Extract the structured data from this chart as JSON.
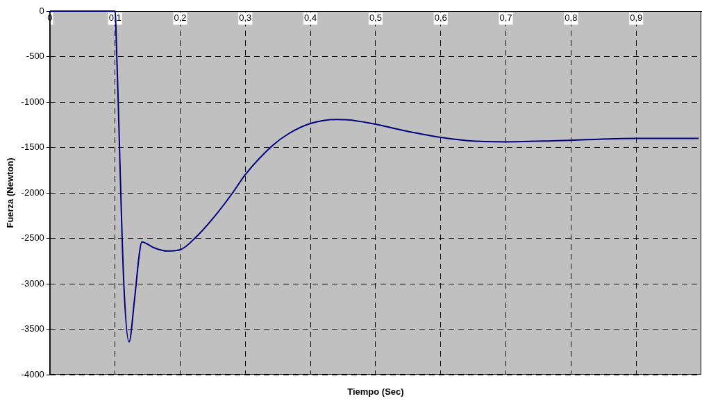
{
  "chart_data": {
    "type": "line",
    "xlabel": "Tiempo (Sec)",
    "ylabel": "Fuerza (Newton)",
    "x": [
      0,
      0.05,
      0.1,
      0.103,
      0.1135,
      0.1215,
      0.13,
      0.1374,
      0.141,
      0.1595,
      0.18,
      0.2,
      0.224,
      0.252,
      0.2805,
      0.3,
      0.3415,
      0.366,
      0.4,
      0.44,
      0.461,
      0.5,
      0.5375,
      0.6,
      0.641,
      0.7,
      0.78,
      0.9,
      0.996
    ],
    "series": [
      {
        "color": "#000080",
        "values": [
          0,
          0,
          0,
          -565,
          -3000,
          -3640,
          -3168,
          -2668,
          -2540,
          -2603,
          -2640,
          -2626,
          -2489,
          -2267,
          -2000,
          -1799,
          -1481,
          -1351,
          -1237,
          -1193,
          -1199,
          -1244,
          -1305,
          -1390,
          -1425,
          -1438,
          -1425,
          -1400,
          -1400
        ]
      }
    ],
    "xlim": [
      0,
      1
    ],
    "ylim": [
      -4000,
      0
    ],
    "xticks": [
      0,
      {
        "value": 0.1,
        "label": "0,1"
      },
      {
        "value": 0.2,
        "label": "0,2"
      },
      {
        "value": 0.3,
        "label": "0,3"
      },
      {
        "value": 0.4,
        "label": "0,4"
      },
      {
        "value": 0.5,
        "label": "0,5"
      },
      {
        "value": 0.6,
        "label": "0,6"
      },
      {
        "value": 0.7,
        "label": "0,7"
      },
      {
        "value": 0.8,
        "label": "0,8"
      },
      {
        "value": 0.9,
        "label": "0,9"
      }
    ],
    "yticks": [
      -4000,
      -3500,
      -3000,
      -2500,
      -2000,
      -1500,
      -1000,
      -500,
      0
    ],
    "grid": true,
    "legend": false,
    "marker": "none",
    "line_style": "solid"
  }
}
